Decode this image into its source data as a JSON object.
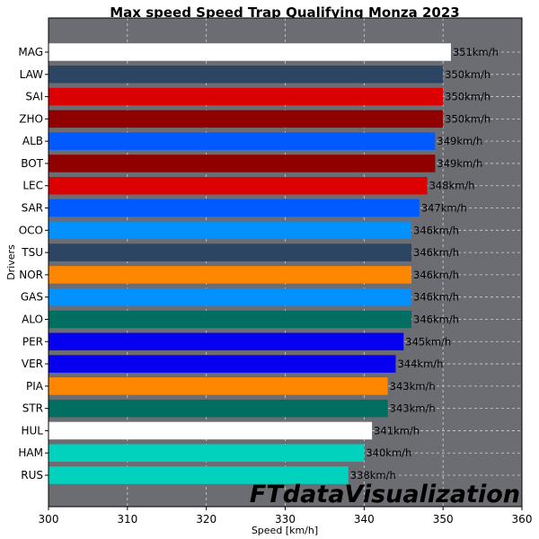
{
  "chart_data": {
    "type": "bar",
    "orientation": "horizontal",
    "title": "Max speed Speed Trap Qualifying Monza 2023",
    "xlabel": "Speed [km/h]",
    "ylabel": "Drivers",
    "xlim": [
      300,
      360
    ],
    "xticks": [
      "300",
      "310",
      "320",
      "330",
      "340",
      "350",
      "360"
    ],
    "grid": true,
    "value_suffix": "km/h",
    "categories": [
      "MAG",
      "LAW",
      "SAI",
      "ZHO",
      "ALB",
      "BOT",
      "LEC",
      "SAR",
      "OCO",
      "TSU",
      "NOR",
      "GAS",
      "ALO",
      "PER",
      "VER",
      "PIA",
      "STR",
      "HUL",
      "HAM",
      "RUS"
    ],
    "values": [
      351,
      350,
      350,
      350,
      349,
      349,
      348,
      347,
      346,
      346,
      346,
      346,
      346,
      345,
      344,
      343,
      343,
      341,
      340,
      338
    ],
    "bar_colors": [
      "#ffffff",
      "#2b4562",
      "#dc0000",
      "#900000",
      "#005aff",
      "#900000",
      "#dc0000",
      "#005aff",
      "#0090ff",
      "#2b4562",
      "#ff8700",
      "#0090ff",
      "#006f62",
      "#0600ef",
      "#0600ef",
      "#ff8700",
      "#006f62",
      "#ffffff",
      "#00d2be",
      "#00d2be"
    ],
    "plot_background": "#6b6d72"
  },
  "watermark": "FTdataVisualization"
}
